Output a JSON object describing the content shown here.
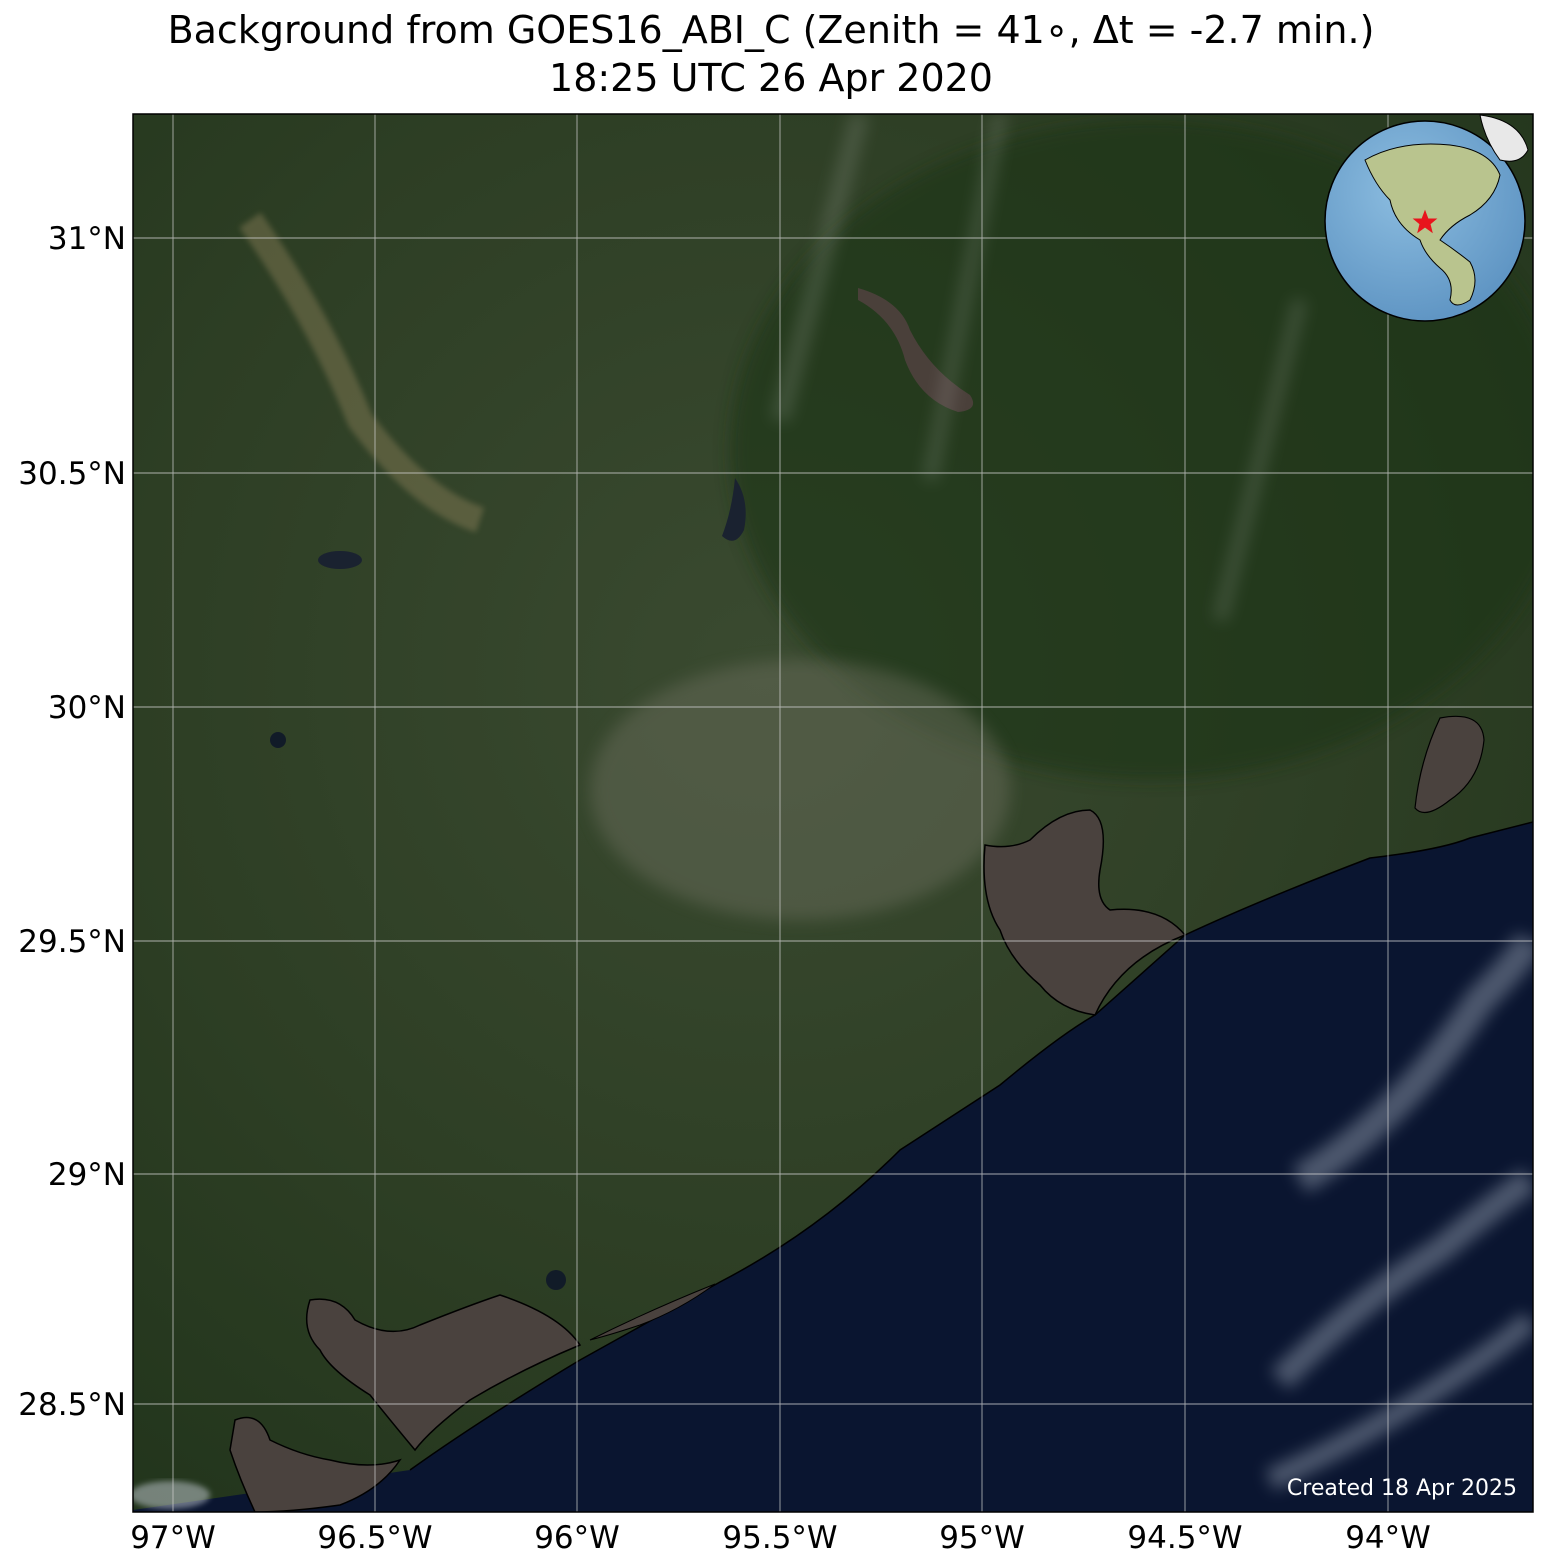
{
  "title": {
    "line1": "Background from GOES16_ABI_C (Zenith = 41∘, Δt = -2.7 min.)",
    "line2": "18:25 UTC 26 Apr 2020"
  },
  "axes": {
    "x_ticks": [
      "97°W",
      "96.5°W",
      "96°W",
      "95.5°W",
      "95°W",
      "94.5°W",
      "94°W"
    ],
    "y_ticks": [
      "31°N",
      "30.5°N",
      "30°N",
      "29.5°N",
      "29°N",
      "28.5°N"
    ]
  },
  "credit": "Created 18 Apr 2025",
  "inset": {
    "type": "globe",
    "marker": "red-star",
    "marker_color": "#e8141c"
  },
  "colors": {
    "land": "#2b3c22",
    "water": "#0a1530",
    "bay": "#4a423e",
    "grid": "#cfcfcf",
    "coast": "#000000"
  }
}
